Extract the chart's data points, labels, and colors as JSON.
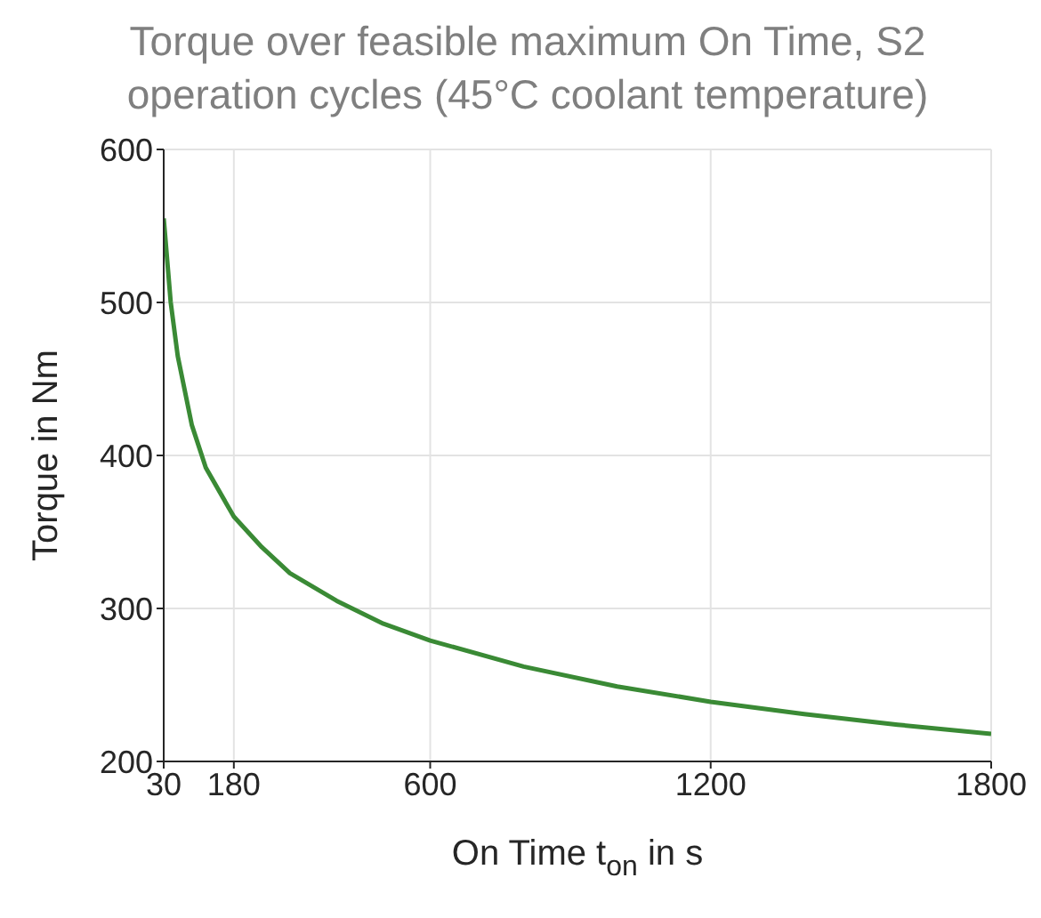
{
  "chart_data": {
    "type": "line",
    "title": "Torque over feasible maximum On Time, S2 operation cycles (45°C coolant temperature)",
    "xlabel": "On Time t$_{on}$ in s",
    "ylabel": "Torque in Nm",
    "x": [
      30,
      45,
      60,
      90,
      120,
      180,
      240,
      300,
      400,
      500,
      600,
      800,
      1000,
      1200,
      1400,
      1600,
      1800
    ],
    "series": [
      {
        "color": "#3a8a35",
        "values": [
          555,
          500,
          465,
          420,
          392,
          360,
          340,
          323,
          305,
          290,
          279,
          262,
          249,
          239,
          231,
          224,
          218
        ]
      }
    ],
    "xlim": [
      30,
      1800
    ],
    "xticks": [
      30,
      180,
      600,
      1200,
      1800
    ],
    "ylim": [
      200,
      600
    ],
    "yticks": [
      200,
      300,
      400,
      500,
      600
    ],
    "grid": true,
    "legend": false,
    "marker": "none",
    "line_style": "solid"
  }
}
